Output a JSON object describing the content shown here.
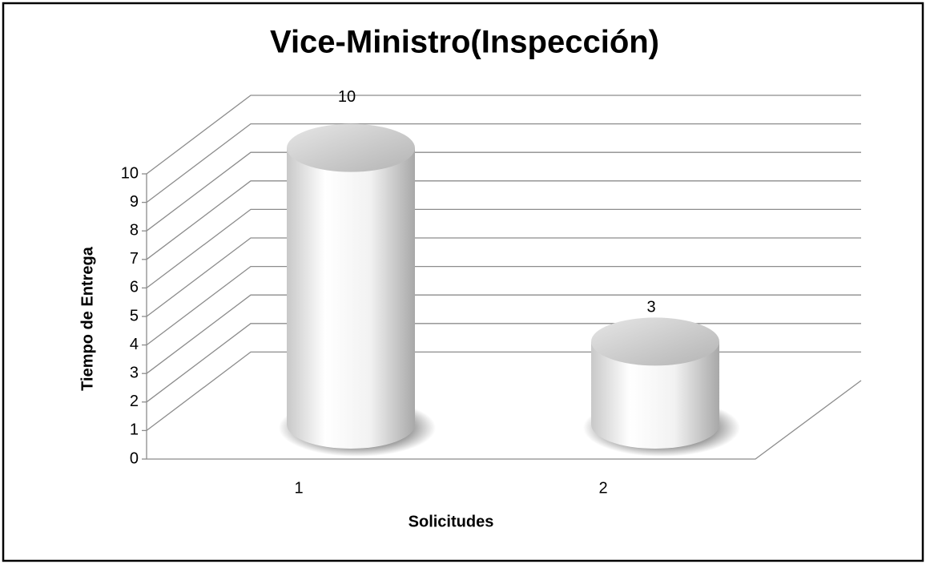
{
  "chart_data": {
    "type": "bar3d",
    "title": "Vice-Ministro(Inspección)",
    "x_label": "Solicitudes",
    "y_label": "Tiempo de Entrega",
    "categories": [
      "1",
      "2"
    ],
    "values": [
      10,
      3
    ],
    "ylim": [
      0,
      10
    ],
    "yticks": [
      0,
      1,
      2,
      3,
      4,
      5,
      6,
      7,
      8,
      9,
      10
    ],
    "grid": true
  }
}
